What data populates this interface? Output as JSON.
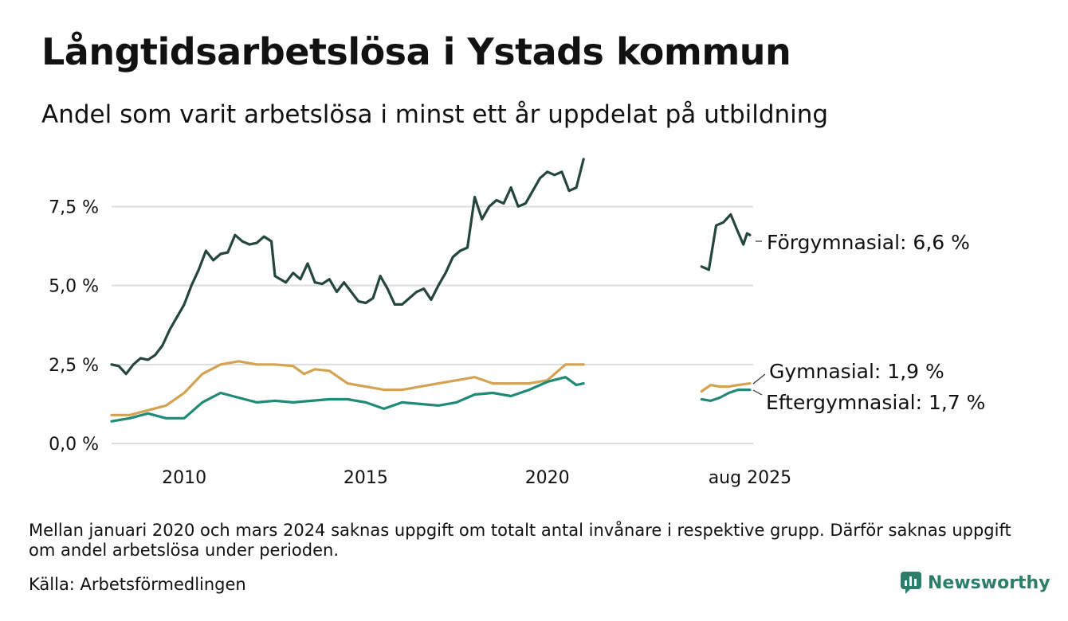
{
  "header": {
    "title": "Långtidsarbetslösa i Ystads kommun",
    "subtitle": "Andel som varit arbetslösa i minst ett år uppdelat på utbildning"
  },
  "footer": {
    "note": "Mellan januari 2020 och mars 2024 saknas uppgift om totalt antal invånare i respektive grupp. Därför saknas uppgift om andel arbetslösa under perioden.",
    "source": "Källa: Arbetsförmedlingen",
    "brand": "Newsworthy",
    "brand_color": "#2e7d6b"
  },
  "chart_data": {
    "type": "line",
    "ylim": [
      0,
      9.2
    ],
    "xlim": [
      2008.0,
      2025.67
    ],
    "y_ticks": [
      0,
      2.5,
      5.0,
      7.5
    ],
    "y_tick_labels": [
      "0,0 %",
      "2,5 %",
      "5,0 %",
      "7,5 %"
    ],
    "x_ticks": [
      2010,
      2015,
      2020,
      2025.58
    ],
    "x_tick_labels": [
      "2010",
      "2015",
      "2020",
      "aug 2025"
    ],
    "grid": true,
    "legend": "direct labels at line ends",
    "series": [
      {
        "label": "Förgymnasial: 6,6 %",
        "color": "#24463f",
        "segments": [
          [
            [
              2008.0,
              2.5
            ],
            [
              2008.2,
              2.45
            ],
            [
              2008.4,
              2.2
            ],
            [
              2008.6,
              2.5
            ],
            [
              2008.8,
              2.7
            ],
            [
              2009.0,
              2.65
            ],
            [
              2009.2,
              2.8
            ],
            [
              2009.4,
              3.1
            ],
            [
              2009.6,
              3.6
            ],
            [
              2009.8,
              4.0
            ],
            [
              2010.0,
              4.4
            ],
            [
              2010.2,
              5.0
            ],
            [
              2010.4,
              5.5
            ],
            [
              2010.6,
              6.1
            ],
            [
              2010.8,
              5.8
            ],
            [
              2011.0,
              6.0
            ],
            [
              2011.2,
              6.05
            ],
            [
              2011.4,
              6.6
            ],
            [
              2011.6,
              6.4
            ],
            [
              2011.8,
              6.3
            ],
            [
              2012.0,
              6.35
            ],
            [
              2012.2,
              6.55
            ],
            [
              2012.4,
              6.4
            ],
            [
              2012.5,
              5.3
            ],
            [
              2012.8,
              5.1
            ],
            [
              2013.0,
              5.4
            ],
            [
              2013.2,
              5.2
            ],
            [
              2013.4,
              5.7
            ],
            [
              2013.6,
              5.1
            ],
            [
              2013.8,
              5.05
            ],
            [
              2014.0,
              5.2
            ],
            [
              2014.2,
              4.8
            ],
            [
              2014.4,
              5.1
            ],
            [
              2014.6,
              4.8
            ],
            [
              2014.8,
              4.5
            ],
            [
              2015.0,
              4.45
            ],
            [
              2015.2,
              4.6
            ],
            [
              2015.4,
              5.3
            ],
            [
              2015.6,
              4.9
            ],
            [
              2015.8,
              4.4
            ],
            [
              2016.0,
              4.4
            ],
            [
              2016.2,
              4.6
            ],
            [
              2016.4,
              4.8
            ],
            [
              2016.6,
              4.9
            ],
            [
              2016.8,
              4.55
            ],
            [
              2017.0,
              5.0
            ],
            [
              2017.2,
              5.4
            ],
            [
              2017.4,
              5.9
            ],
            [
              2017.6,
              6.1
            ],
            [
              2017.8,
              6.2
            ],
            [
              2018.0,
              7.8
            ],
            [
              2018.2,
              7.1
            ],
            [
              2018.4,
              7.5
            ],
            [
              2018.6,
              7.7
            ],
            [
              2018.8,
              7.6
            ],
            [
              2019.0,
              8.1
            ],
            [
              2019.2,
              7.5
            ],
            [
              2019.4,
              7.6
            ],
            [
              2019.6,
              8.0
            ],
            [
              2019.8,
              8.4
            ],
            [
              2020.0,
              8.6
            ],
            [
              2020.2,
              8.5
            ],
            [
              2020.4,
              8.6
            ],
            [
              2020.6,
              8.0
            ],
            [
              2020.8,
              8.1
            ],
            [
              2021.0,
              9.0
            ]
          ],
          [
            [
              2024.25,
              5.6
            ],
            [
              2024.45,
              5.5
            ],
            [
              2024.65,
              6.9
            ],
            [
              2024.85,
              7.0
            ],
            [
              2025.05,
              7.25
            ],
            [
              2025.25,
              6.7
            ],
            [
              2025.4,
              6.3
            ],
            [
              2025.5,
              6.65
            ],
            [
              2025.58,
              6.6
            ]
          ]
        ]
      },
      {
        "label": "Gymnasial: 1,9 %",
        "color": "#d4a352",
        "segments": [
          [
            [
              2008.0,
              0.9
            ],
            [
              2008.5,
              0.9
            ],
            [
              2009.0,
              1.05
            ],
            [
              2009.5,
              1.2
            ],
            [
              2010.0,
              1.6
            ],
            [
              2010.5,
              2.2
            ],
            [
              2011.0,
              2.5
            ],
            [
              2011.5,
              2.6
            ],
            [
              2012.0,
              2.5
            ],
            [
              2012.5,
              2.5
            ],
            [
              2013.0,
              2.45
            ],
            [
              2013.3,
              2.2
            ],
            [
              2013.6,
              2.35
            ],
            [
              2014.0,
              2.3
            ],
            [
              2014.5,
              1.9
            ],
            [
              2015.0,
              1.8
            ],
            [
              2015.5,
              1.7
            ],
            [
              2016.0,
              1.7
            ],
            [
              2016.5,
              1.8
            ],
            [
              2017.0,
              1.9
            ],
            [
              2017.5,
              2.0
            ],
            [
              2018.0,
              2.1
            ],
            [
              2018.5,
              1.9
            ],
            [
              2019.0,
              1.9
            ],
            [
              2019.5,
              1.9
            ],
            [
              2020.0,
              2.0
            ],
            [
              2020.5,
              2.5
            ],
            [
              2021.0,
              2.5
            ]
          ],
          [
            [
              2024.25,
              1.65
            ],
            [
              2024.5,
              1.85
            ],
            [
              2024.75,
              1.8
            ],
            [
              2025.0,
              1.8
            ],
            [
              2025.25,
              1.85
            ],
            [
              2025.58,
              1.9
            ]
          ]
        ]
      },
      {
        "label": "Eftergymnasial: 1,7 %",
        "color": "#1f8a76",
        "segments": [
          [
            [
              2008.0,
              0.7
            ],
            [
              2008.5,
              0.8
            ],
            [
              2009.0,
              0.95
            ],
            [
              2009.5,
              0.8
            ],
            [
              2010.0,
              0.8
            ],
            [
              2010.5,
              1.3
            ],
            [
              2011.0,
              1.6
            ],
            [
              2011.5,
              1.45
            ],
            [
              2012.0,
              1.3
            ],
            [
              2012.5,
              1.35
            ],
            [
              2013.0,
              1.3
            ],
            [
              2013.5,
              1.35
            ],
            [
              2014.0,
              1.4
            ],
            [
              2014.5,
              1.4
            ],
            [
              2015.0,
              1.3
            ],
            [
              2015.5,
              1.1
            ],
            [
              2016.0,
              1.3
            ],
            [
              2016.5,
              1.25
            ],
            [
              2017.0,
              1.2
            ],
            [
              2017.5,
              1.3
            ],
            [
              2018.0,
              1.55
            ],
            [
              2018.5,
              1.6
            ],
            [
              2019.0,
              1.5
            ],
            [
              2019.5,
              1.7
            ],
            [
              2020.0,
              1.95
            ],
            [
              2020.5,
              2.1
            ],
            [
              2020.8,
              1.85
            ],
            [
              2021.0,
              1.9
            ]
          ],
          [
            [
              2024.25,
              1.4
            ],
            [
              2024.5,
              1.35
            ],
            [
              2024.75,
              1.45
            ],
            [
              2025.0,
              1.6
            ],
            [
              2025.25,
              1.7
            ],
            [
              2025.58,
              1.7
            ]
          ]
        ]
      }
    ]
  }
}
